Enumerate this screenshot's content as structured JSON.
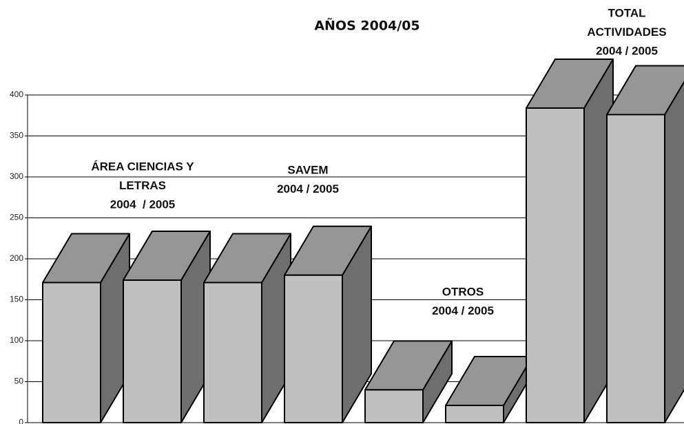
{
  "chart_data": {
    "type": "bar3d",
    "title": "AÑOS 2004/05",
    "categories": [
      null,
      null,
      null,
      null,
      null,
      null,
      null,
      null
    ],
    "values": [
      171,
      174,
      171,
      180,
      40,
      21,
      384,
      376
    ],
    "colors": {
      "front": "#c0c0c0",
      "top": "#969696",
      "side": "#6e6e6e"
    },
    "ylim": [
      0,
      400
    ],
    "yticks": [
      0,
      50,
      100,
      150,
      200,
      250,
      300,
      350,
      400
    ],
    "grid": true,
    "annotations": [
      {
        "lines": [
          "ÁREA CIENCIAS Y",
          "LETRAS",
          "2004  / 2005"
        ]
      },
      {
        "lines": [
          "SAVEM",
          "2004 / 2005"
        ]
      },
      {
        "lines": [
          "OTROS",
          "2004 / 2005"
        ]
      },
      {
        "lines": [
          "TOTAL",
          "ACTIVIDADES",
          "2004 / 2005"
        ]
      }
    ]
  }
}
